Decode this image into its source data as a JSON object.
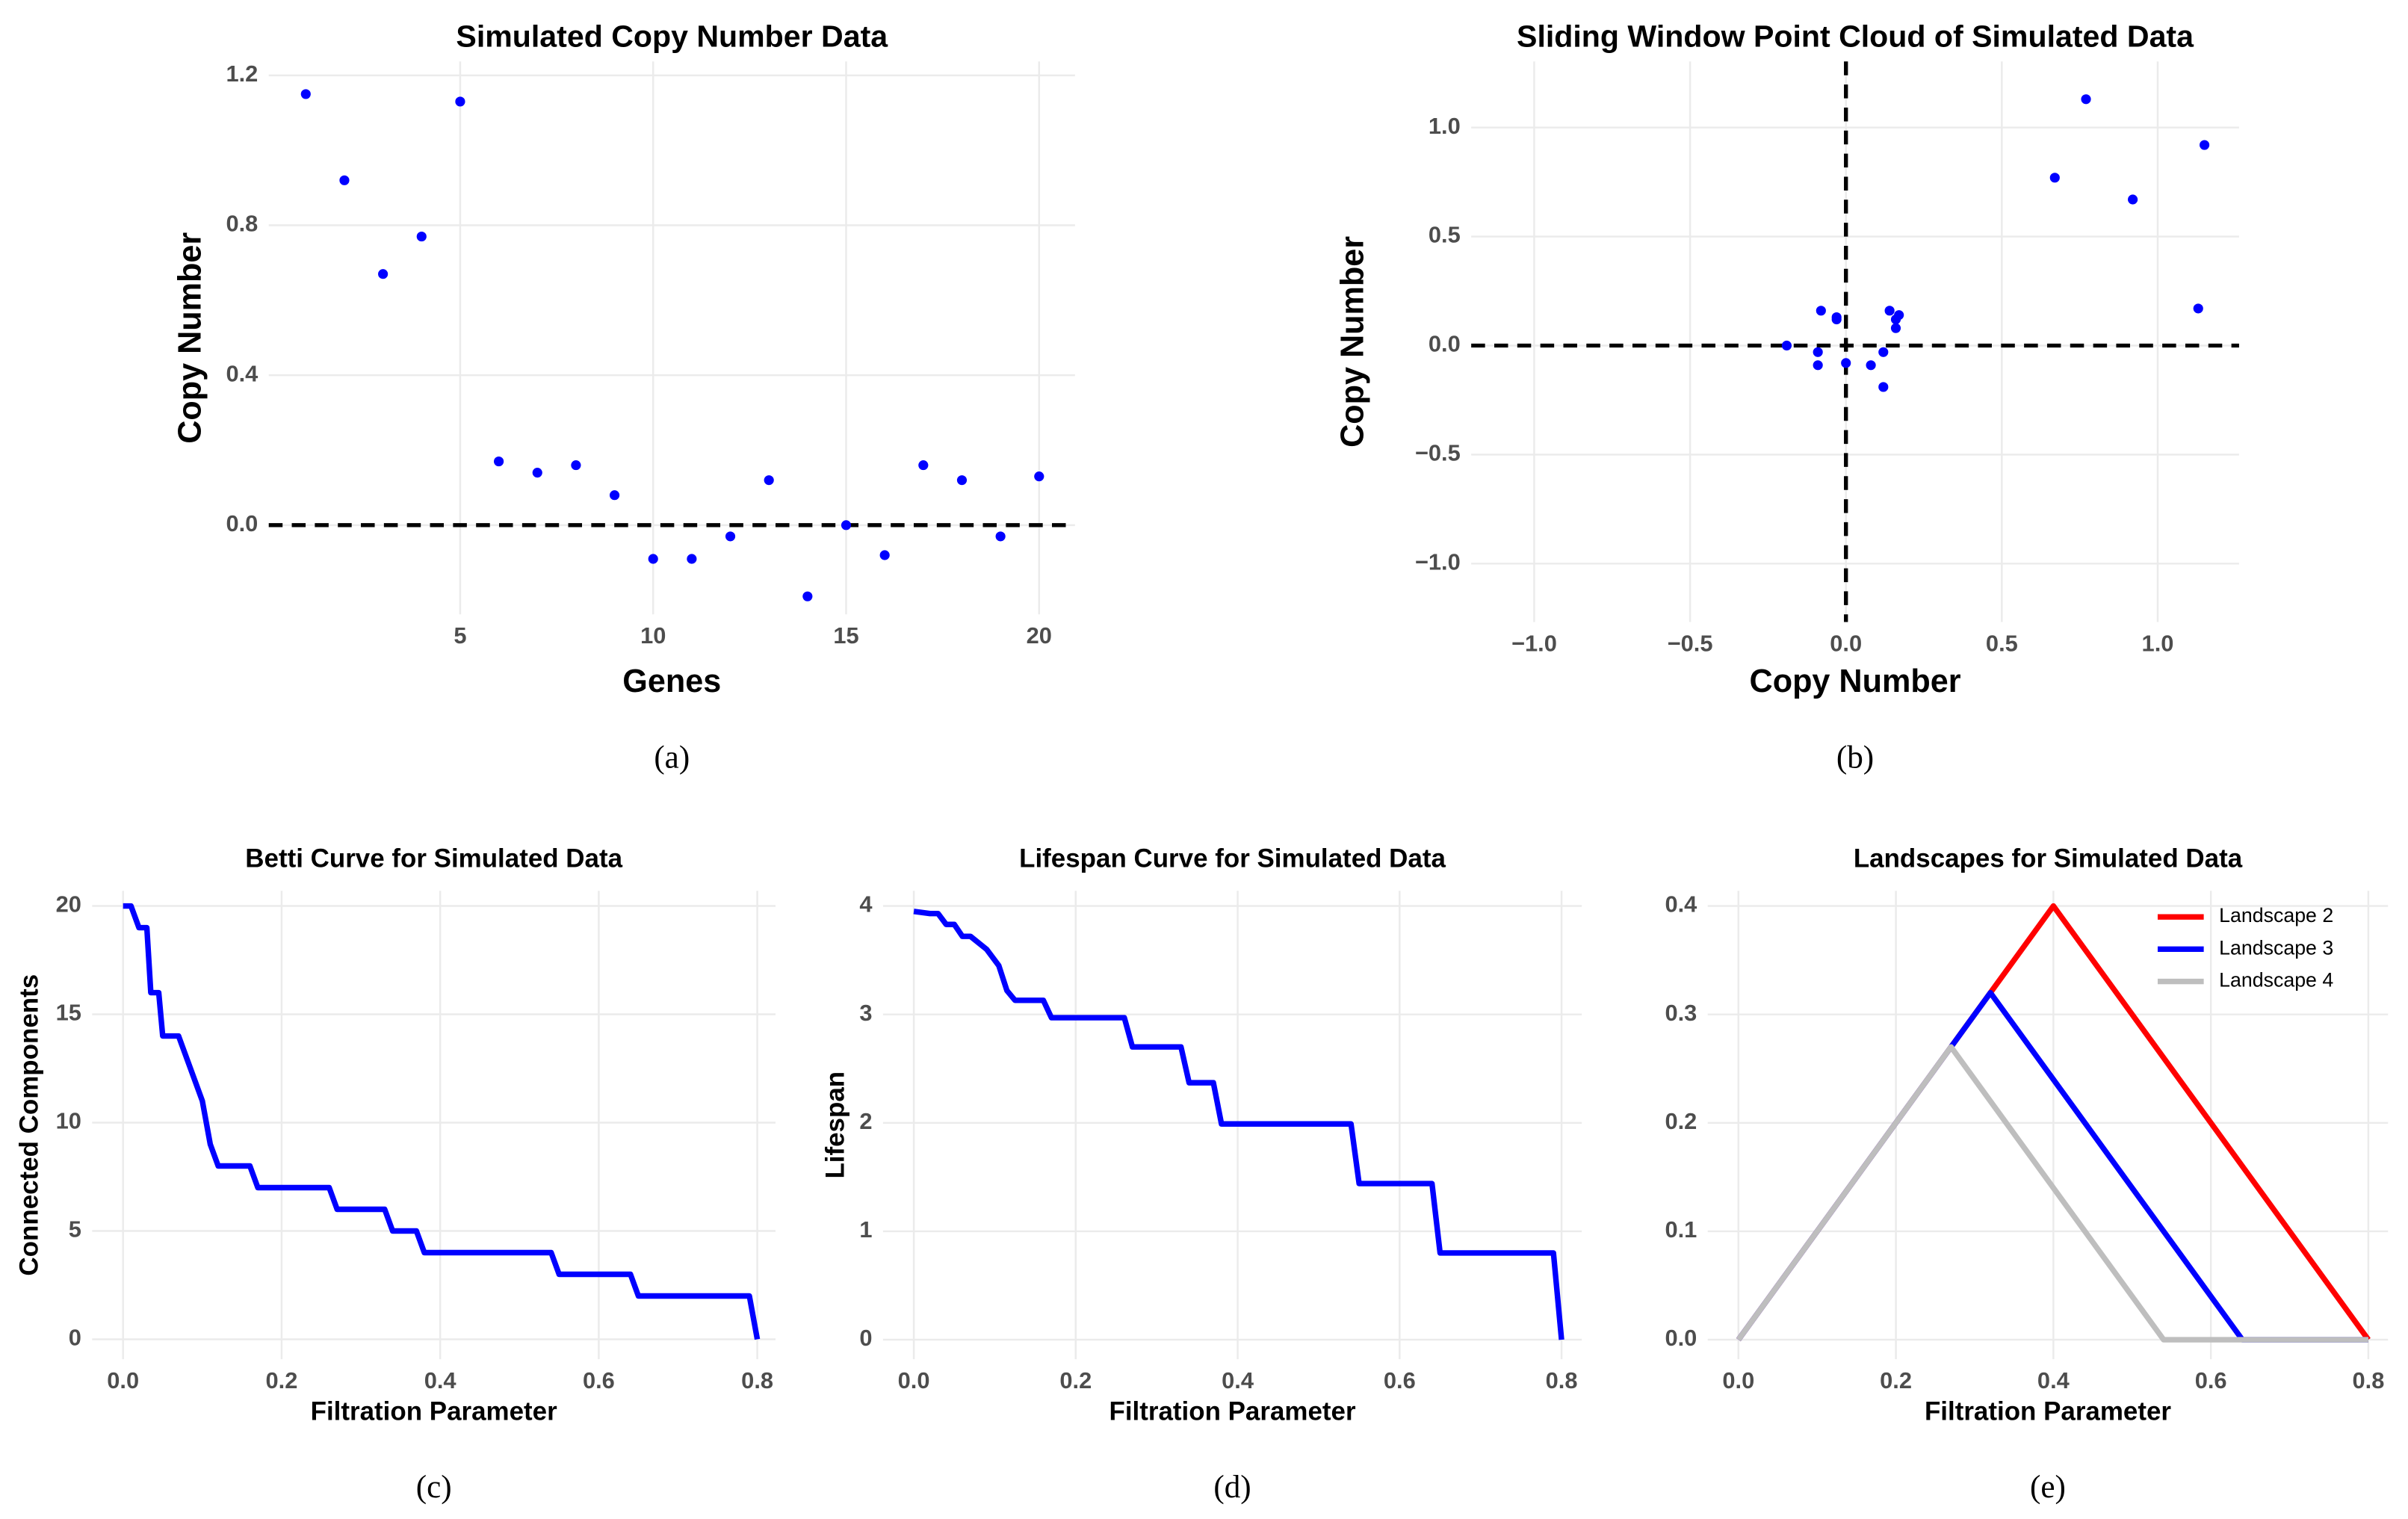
{
  "chart_data": [
    {
      "type": "scatter",
      "title": "Simulated Copy Number Data",
      "xlabel": "Genes",
      "ylabel": "Copy Number",
      "caption": "(a)",
      "color": "#0000ff",
      "x": [
        1,
        2,
        3,
        4,
        5,
        6,
        7,
        8,
        9,
        10,
        11,
        12,
        13,
        14,
        15,
        16,
        17,
        18,
        19,
        20
      ],
      "values": [
        1.15,
        0.92,
        0.67,
        0.77,
        1.13,
        0.17,
        0.14,
        0.16,
        0.08,
        -0.09,
        -0.09,
        -0.03,
        0.12,
        -0.19,
        0.0,
        -0.08,
        0.16,
        0.12,
        -0.03,
        0.13
      ],
      "xlim": [
        0.04,
        20.93
      ],
      "ylim": [
        -0.238,
        1.237
      ],
      "xticks": [
        5,
        10,
        15,
        20
      ],
      "yticks": [
        {
          "value": 0,
          "label": "0.0"
        },
        0.4,
        0.8,
        1.2
      ],
      "hlines": [
        0
      ],
      "grid": true
    },
    {
      "type": "scatter",
      "title": "Sliding Window Point Cloud of Simulated Data",
      "xlabel": "Copy Number",
      "ylabel": "Copy Number",
      "caption": "(b)",
      "color": "#0000ff",
      "x": [
        1.15,
        0.92,
        0.67,
        0.77,
        1.13,
        0.17,
        0.14,
        0.16,
        0.08,
        -0.09,
        -0.09,
        -0.03,
        0.12,
        -0.19,
        0.0,
        -0.08,
        0.16,
        0.12,
        -0.03
      ],
      "values": [
        0.92,
        0.67,
        0.77,
        1.13,
        0.17,
        0.14,
        0.16,
        0.08,
        -0.09,
        -0.09,
        -0.03,
        0.12,
        -0.19,
        0.0,
        -0.08,
        0.16,
        0.12,
        -0.03,
        0.13
      ],
      "xlim": [
        -1.202,
        1.261
      ],
      "ylim": [
        -1.268,
        1.303
      ],
      "xticks": [
        {
          "value": -1,
          "label": "−1.0"
        },
        {
          "value": -0.5,
          "label": "−0.5"
        },
        {
          "value": 0,
          "label": "0.0"
        },
        0.5,
        {
          "value": 1,
          "label": "1.0"
        }
      ],
      "yticks": [
        {
          "value": -1,
          "label": "−1.0"
        },
        {
          "value": -0.5,
          "label": "−0.5"
        },
        {
          "value": 0,
          "label": "0.0"
        },
        0.5,
        {
          "value": 1,
          "label": "1.0"
        }
      ],
      "hlines": [
        0
      ],
      "vlines": [
        0
      ],
      "grid": true
    },
    {
      "type": "line",
      "title": "Betti Curve for Simulated Data",
      "xlabel": "Filtration Parameter",
      "ylabel": "Connected Components",
      "caption": "(c)",
      "color": "#0000ff",
      "x": [
        0,
        0.01,
        0.02,
        0.03,
        0.035,
        0.045,
        0.05,
        0.07,
        0.1,
        0.11,
        0.12,
        0.16,
        0.17,
        0.26,
        0.27,
        0.33,
        0.34,
        0.37,
        0.38,
        0.54,
        0.55,
        0.64,
        0.65,
        0.79,
        0.8
      ],
      "values": [
        20,
        20,
        19,
        19,
        16,
        16,
        14,
        14,
        11,
        9,
        8,
        8,
        7,
        7,
        6,
        6,
        5,
        5,
        4,
        4,
        3,
        3,
        2,
        2,
        0
      ],
      "xlim": [
        -0.039,
        0.823
      ],
      "ylim": [
        -0.92,
        20.7
      ],
      "xticks": [
        {
          "value": 0,
          "label": "0.0"
        },
        0.2,
        0.4,
        0.6,
        0.8
      ],
      "yticks": [
        0,
        5,
        10,
        15,
        20
      ],
      "grid": true
    },
    {
      "type": "line",
      "title": "Lifespan Curve for Simulated Data",
      "xlabel": "Filtration Parameter",
      "ylabel": "Lifespan",
      "caption": "(d)",
      "color": "#0000ff",
      "x": [
        0,
        0.02,
        0.03,
        0.04,
        0.05,
        0.06,
        0.07,
        0.09,
        0.105,
        0.115,
        0.125,
        0.16,
        0.17,
        0.26,
        0.27,
        0.33,
        0.34,
        0.37,
        0.38,
        0.54,
        0.55,
        0.64,
        0.65,
        0.79,
        0.8
      ],
      "values": [
        3.95,
        3.93,
        3.93,
        3.83,
        3.83,
        3.72,
        3.72,
        3.6,
        3.45,
        3.22,
        3.13,
        3.13,
        2.97,
        2.97,
        2.7,
        2.7,
        2.37,
        2.37,
        1.99,
        1.99,
        1.44,
        1.44,
        0.8,
        0.8,
        0
      ],
      "xlim": [
        -0.038,
        0.825
      ],
      "ylim": [
        -0.18,
        4.14
      ],
      "xticks": [
        {
          "value": 0,
          "label": "0.0"
        },
        0.2,
        0.4,
        0.6,
        0.8
      ],
      "yticks": [
        0,
        1,
        2,
        3,
        4
      ],
      "grid": true
    },
    {
      "type": "line",
      "title": "Landscapes for Simulated Data",
      "xlabel": "Filtration Parameter",
      "caption": "(e)",
      "series": [
        {
          "name": "Landscape 2",
          "color": "#ff0000",
          "x": [
            0,
            0.4,
            0.8
          ],
          "values": [
            0,
            0.4,
            0
          ]
        },
        {
          "name": "Landscape 3",
          "color": "#0000ff",
          "x": [
            0,
            0.32,
            0.64,
            0.8
          ],
          "values": [
            0,
            0.32,
            0,
            0
          ]
        },
        {
          "name": "Landscape 4",
          "color": "#bebebe",
          "x": [
            0,
            0.27,
            0.54,
            0.8
          ],
          "values": [
            0,
            0.27,
            0,
            0
          ]
        }
      ],
      "xlim": [
        -0.039,
        0.825
      ],
      "ylim": [
        -0.018,
        0.414
      ],
      "xticks": [
        {
          "value": 0,
          "label": "0.0"
        },
        0.2,
        0.4,
        0.6,
        0.8
      ],
      "yticks": [
        {
          "value": 0,
          "label": "0.0"
        },
        0.1,
        0.2,
        0.3,
        0.4
      ],
      "legend": "top-right",
      "grid": true
    }
  ]
}
